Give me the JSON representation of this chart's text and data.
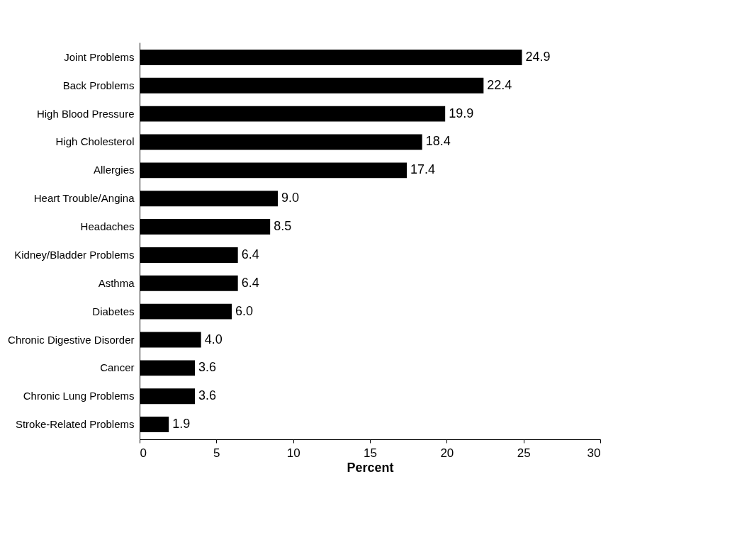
{
  "chart_data": {
    "type": "bar",
    "orientation": "horizontal",
    "xlabel": "Percent",
    "categories": [
      "Joint Problems",
      "Back Problems",
      "High Blood Pressure",
      "High Cholesterol",
      "Allergies",
      "Heart Trouble/Angina",
      "Headaches",
      "Kidney/Bladder Problems",
      "Asthma",
      "Diabetes",
      "Chronic Digestive Disorder",
      "Cancer",
      "Chronic Lung Problems",
      "Stroke-Related Problems"
    ],
    "values": [
      24.9,
      22.4,
      19.9,
      18.4,
      17.4,
      9.0,
      8.5,
      6.4,
      6.4,
      6.0,
      4.0,
      3.6,
      3.6,
      1.9
    ],
    "value_labels": [
      "24.9",
      "22.4",
      "19.9",
      "18.4",
      "17.4",
      "9.0",
      "8.5",
      "6.4",
      "6.4",
      "6.0",
      "4.0",
      "3.6",
      "3.6",
      "1.9"
    ],
    "color": "#000000",
    "xlim": [
      0,
      30
    ],
    "xticks": [
      0,
      5,
      10,
      15,
      20,
      25,
      30
    ]
  }
}
